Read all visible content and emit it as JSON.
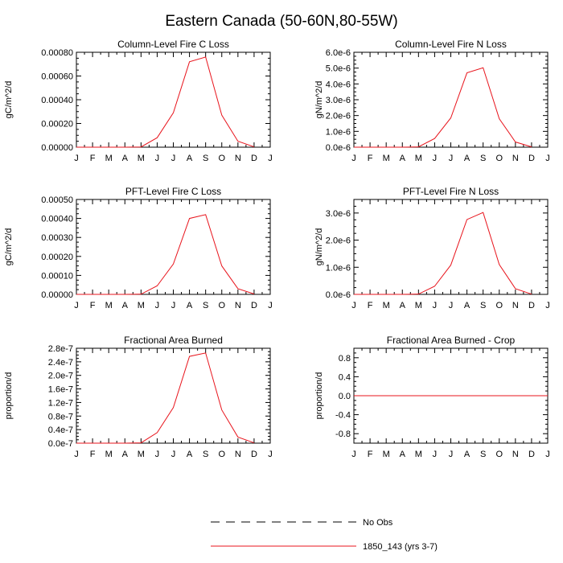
{
  "figure_title": "Eastern Canada (50-60N,80-55W)",
  "months": [
    "J",
    "F",
    "M",
    "A",
    "M",
    "J",
    "J",
    "A",
    "S",
    "O",
    "N",
    "D",
    "J"
  ],
  "legend": [
    {
      "label": "No Obs",
      "style": "dashed",
      "color": "#000000"
    },
    {
      "label": "1850_143 (yrs 3-7)",
      "style": "solid",
      "color": "#e8141c"
    }
  ],
  "chart_data": [
    {
      "type": "line",
      "title": "Column-Level Fire C Loss",
      "ylabel": "gC/m^2/d",
      "ylim": [
        0,
        0.0008
      ],
      "yticks": [
        0,
        0.0002,
        0.0004,
        0.0006,
        0.0008
      ],
      "ytick_labels": [
        "0.00000",
        "0.00020",
        "0.00040",
        "0.00060",
        "0.00080"
      ],
      "series": [
        {
          "name": "1850_143 (yrs 3-7)",
          "color": "#e8141c",
          "values": [
            0,
            0,
            0,
            0,
            2e-06,
            8e-05,
            0.00029,
            0.00072,
            0.00076,
            0.00027,
            5e-05,
            3e-06
          ]
        }
      ]
    },
    {
      "type": "line",
      "title": "Column-Level Fire N Loss",
      "ylabel": "gN/m^2/d",
      "ylim": [
        0,
        6e-06
      ],
      "yticks": [
        0,
        1e-06,
        2e-06,
        3e-06,
        4e-06,
        5e-06,
        6e-06
      ],
      "ytick_labels": [
        "0.0e-6",
        "1.0e-6",
        "2.0e-6",
        "3.0e-6",
        "4.0e-6",
        "5.0e-6",
        "6.0e-6"
      ],
      "series": [
        {
          "name": "1850_143 (yrs 3-7)",
          "color": "#e8141c",
          "values": [
            0,
            0,
            0,
            0,
            2e-08,
            5.5e-07,
            1.85e-06,
            4.7e-06,
            5.02e-06,
            1.8e-06,
            3.3e-07,
            2e-08
          ]
        }
      ]
    },
    {
      "type": "line",
      "title": "PFT-Level Fire C Loss",
      "ylabel": "gC/m^2/d",
      "ylim": [
        0,
        0.0005
      ],
      "yticks": [
        0,
        0.0001,
        0.0002,
        0.0003,
        0.0004,
        0.0005
      ],
      "ytick_labels": [
        "0.00000",
        "0.00010",
        "0.00020",
        "0.00030",
        "0.00040",
        "0.00050"
      ],
      "series": [
        {
          "name": "1850_143 (yrs 3-7)",
          "color": "#e8141c",
          "values": [
            0,
            0,
            0,
            0,
            1e-06,
            4.5e-05,
            0.00016,
            0.0004,
            0.00042,
            0.00015,
            3e-05,
            2e-06
          ]
        }
      ]
    },
    {
      "type": "line",
      "title": "PFT-Level Fire N Loss",
      "ylabel": "gN/m^2/d",
      "ylim": [
        0,
        3.5e-06
      ],
      "yticks": [
        0,
        1e-06,
        2e-06,
        3e-06
      ],
      "ytick_labels": [
        "0.0e-6",
        "1.0e-6",
        "2.0e-6",
        "3.0e-6"
      ],
      "series": [
        {
          "name": "1850_143 (yrs 3-7)",
          "color": "#e8141c",
          "values": [
            0,
            0,
            0,
            0,
            1e-08,
            3e-07,
            1.08e-06,
            2.76e-06,
            3.02e-06,
            1.1e-06,
            2.1e-07,
            1e-08
          ]
        }
      ]
    },
    {
      "type": "line",
      "title": "Fractional Area Burned",
      "ylabel": "proportion/d",
      "ylim": [
        0,
        2.8e-07
      ],
      "yticks": [
        0,
        4e-08,
        8e-08,
        1.2e-07,
        1.6e-07,
        2e-07,
        2.4e-07,
        2.8e-07
      ],
      "ytick_labels": [
        "0.0e-7",
        "0.4e-7",
        "0.8e-7",
        "1.2e-7",
        "1.6e-7",
        "2.0e-7",
        "2.4e-7",
        "2.8e-7"
      ],
      "series": [
        {
          "name": "1850_143 (yrs 3-7)",
          "color": "#e8141c",
          "values": [
            0,
            0,
            0,
            0,
            1e-09,
            3.1e-08,
            1.05e-07,
            2.56e-07,
            2.66e-07,
            9.8e-08,
            1.8e-08,
            1e-09
          ]
        }
      ]
    },
    {
      "type": "line",
      "title": "Fractional Area Burned - Crop",
      "ylabel": "proportion/d",
      "ylim": [
        -1,
        1
      ],
      "yticks": [
        -0.8,
        -0.4,
        0,
        0.4,
        0.8
      ],
      "ytick_labels": [
        "-0.8",
        "-0.4",
        "0.0",
        "0.4",
        "0.8"
      ],
      "series": [
        {
          "name": "1850_143 (yrs 3-7)",
          "color": "#e8141c",
          "values": [
            0,
            0,
            0,
            0,
            0,
            0,
            0,
            0,
            0,
            0,
            0,
            0
          ]
        }
      ]
    }
  ]
}
